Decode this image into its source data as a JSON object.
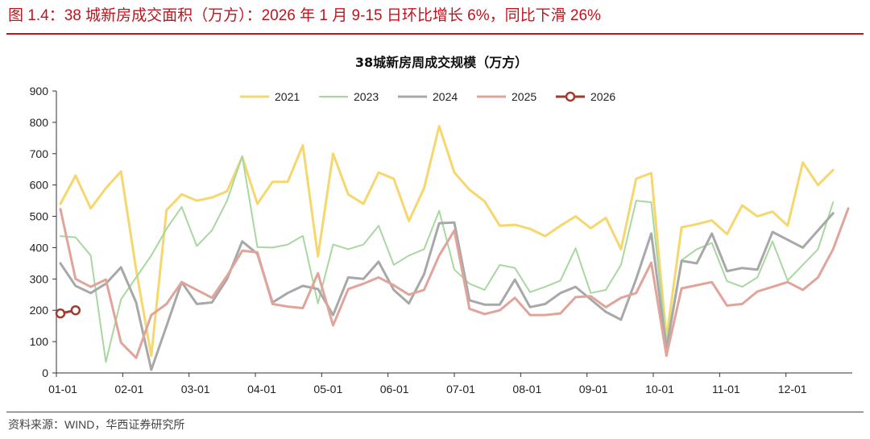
{
  "caption": "图 1.4：38 城新房成交面积（万方）：2026 年 1 月 9-15 日环比增长 6%，同比下滑 26%",
  "source": "资料来源：WIND，华西证券研究所",
  "colors": {
    "accent": "#c0141e",
    "s2021": "#f5d76e",
    "s2023": "#a8d8a0",
    "s2024": "#a8a8a8",
    "s2025": "#e0a49a",
    "s2026": "#a33a30"
  },
  "chart_data": {
    "type": "line",
    "title": "38城新房周成交规模（万方）",
    "xlabel": "",
    "ylabel": "",
    "ylim": [
      0,
      900
    ],
    "yticks": [
      "0",
      "100",
      "200",
      "300",
      "400",
      "500",
      "600",
      "700",
      "800",
      "900"
    ],
    "xticks": [
      "01-01",
      "02-01",
      "03-01",
      "04-01",
      "05-01",
      "06-01",
      "07-01",
      "08-01",
      "09-01",
      "10-01",
      "11-01",
      "12-01"
    ],
    "x_range": [
      1,
      53
    ],
    "grid": false,
    "legend": "top",
    "series": [
      {
        "name": "2021",
        "values": [
          540,
          630,
          525,
          590,
          643,
          330,
          55,
          520,
          570,
          550,
          560,
          580,
          690,
          540,
          610,
          610,
          727,
          372,
          700,
          570,
          540,
          640,
          620,
          485,
          590,
          788,
          640,
          585,
          548,
          470,
          473,
          460,
          437,
          470,
          500,
          462,
          495,
          395,
          620,
          638,
          110,
          465,
          475,
          487,
          443,
          535,
          500,
          515,
          470,
          672,
          600,
          648
        ]
      },
      {
        "name": "2023",
        "values": [
          437,
          433,
          375,
          35,
          235,
          305,
          375,
          460,
          530,
          405,
          455,
          550,
          692,
          402,
          400,
          410,
          438,
          222,
          410,
          395,
          410,
          470,
          345,
          375,
          395,
          518,
          330,
          285,
          265,
          345,
          335,
          258,
          275,
          295,
          398,
          255,
          265,
          345,
          550,
          545,
          95,
          360,
          395,
          415,
          293,
          275,
          305,
          420,
          295,
          345,
          395,
          545
        ]
      },
      {
        "name": "2024",
        "values": [
          350,
          278,
          255,
          285,
          337,
          225,
          10,
          150,
          290,
          220,
          225,
          300,
          420,
          380,
          225,
          255,
          278,
          268,
          185,
          305,
          300,
          355,
          265,
          222,
          315,
          478,
          480,
          232,
          218,
          218,
          298,
          210,
          220,
          255,
          275,
          235,
          195,
          170,
          300,
          445,
          75,
          358,
          350,
          445,
          325,
          335,
          330,
          450,
          425,
          400,
          455,
          510
        ]
      },
      {
        "name": "2025",
        "values": [
          523,
          300,
          275,
          298,
          97,
          48,
          185,
          220,
          290,
          265,
          240,
          310,
          390,
          385,
          220,
          212,
          207,
          318,
          152,
          268,
          285,
          305,
          280,
          250,
          265,
          375,
          455,
          205,
          188,
          200,
          240,
          185,
          185,
          190,
          242,
          245,
          210,
          240,
          255,
          352,
          55,
          270,
          280,
          290,
          215,
          220,
          260,
          275,
          290,
          265,
          305,
          395,
          525
        ]
      },
      {
        "name": "2026",
        "values": [
          190,
          200
        ]
      }
    ]
  }
}
